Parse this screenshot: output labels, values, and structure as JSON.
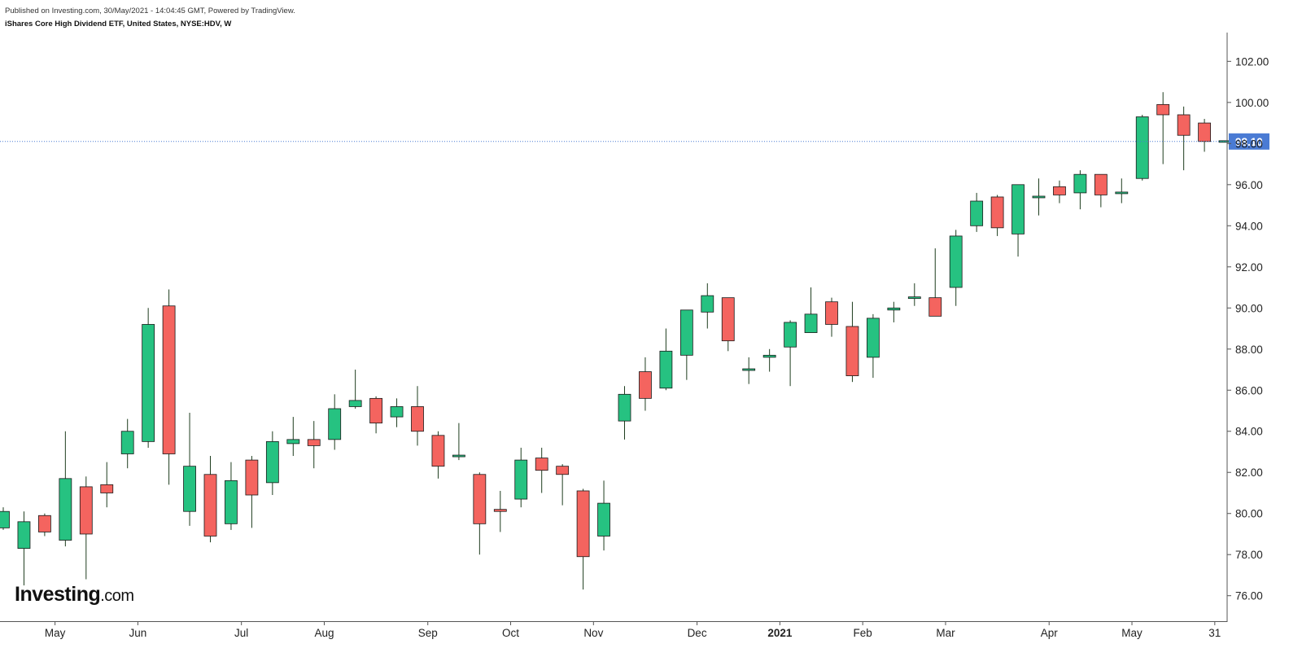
{
  "header": {
    "published": "Published on Investing.com, 30/May/2021 - 14:04:45 GMT, Powered by TradingView.",
    "instrument": "iShares Core High Dividend ETF, United States, NYSE:HDV, W"
  },
  "logo": {
    "main": "Investing",
    "suffix": ".com"
  },
  "colors": {
    "up": "#26c281",
    "down": "#f4645f",
    "wick": "#1e3d1e",
    "price_line": "#4a7bd4",
    "price_label_bg": "#4a7bd4"
  },
  "chart_data": {
    "type": "candlestick",
    "y_axis": {
      "range": [
        74.8,
        103.4
      ],
      "ticks": [
        "76.00",
        "78.00",
        "80.00",
        "82.00",
        "84.00",
        "86.00",
        "88.00",
        "90.00",
        "92.00",
        "94.00",
        "96.00",
        "98.00",
        "100.00",
        "102.00"
      ],
      "position": "right"
    },
    "x_axis": {
      "ticks": [
        {
          "label": "May",
          "index": 2.5
        },
        {
          "label": "Jun",
          "index": 6.5
        },
        {
          "label": "Jul",
          "index": 11.5
        },
        {
          "label": "Aug",
          "index": 15.5
        },
        {
          "label": "Sep",
          "index": 20.5
        },
        {
          "label": "Oct",
          "index": 24.5
        },
        {
          "label": "Nov",
          "index": 28.5
        },
        {
          "label": "Dec",
          "index": 33.5
        },
        {
          "label": "2021",
          "index": 37.5,
          "bold": true
        },
        {
          "label": "Feb",
          "index": 41.5
        },
        {
          "label": "Mar",
          "index": 45.5
        },
        {
          "label": "Apr",
          "index": 50.5
        },
        {
          "label": "May",
          "index": 54.5
        },
        {
          "label": "31",
          "index": 58.5
        }
      ]
    },
    "last_price": {
      "value": 98.1,
      "label": "98.10"
    },
    "candles": [
      {
        "o": 79.3,
        "h": 80.3,
        "l": 79.2,
        "c": 80.1
      },
      {
        "o": 78.3,
        "h": 80.1,
        "l": 76.5,
        "c": 79.6
      },
      {
        "o": 79.9,
        "h": 80.0,
        "l": 78.9,
        "c": 79.1
      },
      {
        "o": 78.7,
        "h": 84.0,
        "l": 78.4,
        "c": 81.7
      },
      {
        "o": 81.3,
        "h": 81.8,
        "l": 76.8,
        "c": 79.0
      },
      {
        "o": 81.4,
        "h": 82.5,
        "l": 80.3,
        "c": 81.0
      },
      {
        "o": 82.9,
        "h": 84.6,
        "l": 82.2,
        "c": 84.0
      },
      {
        "o": 83.5,
        "h": 90.0,
        "l": 83.2,
        "c": 89.2
      },
      {
        "o": 90.1,
        "h": 90.9,
        "l": 81.4,
        "c": 82.9
      },
      {
        "o": 80.1,
        "h": 84.9,
        "l": 79.4,
        "c": 82.3
      },
      {
        "o": 81.9,
        "h": 82.8,
        "l": 78.6,
        "c": 78.9
      },
      {
        "o": 79.5,
        "h": 82.5,
        "l": 79.2,
        "c": 81.6
      },
      {
        "o": 82.6,
        "h": 82.8,
        "l": 79.3,
        "c": 80.9
      },
      {
        "o": 81.5,
        "h": 84.0,
        "l": 80.9,
        "c": 83.5
      },
      {
        "o": 83.4,
        "h": 84.7,
        "l": 82.8,
        "c": 83.6
      },
      {
        "o": 83.6,
        "h": 84.5,
        "l": 82.2,
        "c": 83.3
      },
      {
        "o": 83.6,
        "h": 85.8,
        "l": 83.1,
        "c": 85.1
      },
      {
        "o": 85.2,
        "h": 87.0,
        "l": 85.1,
        "c": 85.5
      },
      {
        "o": 85.6,
        "h": 85.7,
        "l": 83.9,
        "c": 84.4
      },
      {
        "o": 84.7,
        "h": 85.6,
        "l": 84.2,
        "c": 85.2
      },
      {
        "o": 85.2,
        "h": 86.2,
        "l": 83.3,
        "c": 84.0
      },
      {
        "o": 83.8,
        "h": 84.0,
        "l": 81.7,
        "c": 82.3
      },
      {
        "o": 82.8,
        "h": 84.4,
        "l": 82.6,
        "c": 82.8
      },
      {
        "o": 81.9,
        "h": 82.0,
        "l": 78.0,
        "c": 79.5
      },
      {
        "o": 80.2,
        "h": 81.1,
        "l": 79.1,
        "c": 80.1
      },
      {
        "o": 80.7,
        "h": 83.2,
        "l": 80.3,
        "c": 82.6
      },
      {
        "o": 82.7,
        "h": 83.2,
        "l": 81.0,
        "c": 82.1
      },
      {
        "o": 82.3,
        "h": 82.4,
        "l": 80.4,
        "c": 81.9
      },
      {
        "o": 81.1,
        "h": 81.2,
        "l": 76.3,
        "c": 77.9
      },
      {
        "o": 78.9,
        "h": 81.6,
        "l": 78.2,
        "c": 80.5
      },
      {
        "o": 84.5,
        "h": 86.2,
        "l": 83.6,
        "c": 85.8
      },
      {
        "o": 86.9,
        "h": 87.6,
        "l": 85.0,
        "c": 85.6
      },
      {
        "o": 86.1,
        "h": 89.0,
        "l": 86.0,
        "c": 87.9
      },
      {
        "o": 87.7,
        "h": 89.9,
        "l": 86.5,
        "c": 89.9
      },
      {
        "o": 89.8,
        "h": 91.2,
        "l": 89.0,
        "c": 90.6
      },
      {
        "o": 90.5,
        "h": 90.5,
        "l": 87.9,
        "c": 88.4
      },
      {
        "o": 87.0,
        "h": 87.6,
        "l": 86.3,
        "c": 87.0
      },
      {
        "o": 87.6,
        "h": 88.0,
        "l": 86.9,
        "c": 87.7
      },
      {
        "o": 88.1,
        "h": 89.4,
        "l": 86.2,
        "c": 89.3
      },
      {
        "o": 88.8,
        "h": 91.0,
        "l": 88.8,
        "c": 89.7
      },
      {
        "o": 90.3,
        "h": 90.5,
        "l": 88.6,
        "c": 89.2
      },
      {
        "o": 89.1,
        "h": 90.3,
        "l": 86.4,
        "c": 86.7
      },
      {
        "o": 87.6,
        "h": 89.7,
        "l": 86.6,
        "c": 89.5
      },
      {
        "o": 89.9,
        "h": 90.3,
        "l": 89.3,
        "c": 90.0
      },
      {
        "o": 90.5,
        "h": 91.2,
        "l": 90.1,
        "c": 90.5
      },
      {
        "o": 90.5,
        "h": 92.9,
        "l": 89.6,
        "c": 89.6
      },
      {
        "o": 91.0,
        "h": 93.8,
        "l": 90.1,
        "c": 93.5
      },
      {
        "o": 94.0,
        "h": 95.6,
        "l": 93.7,
        "c": 95.2
      },
      {
        "o": 95.4,
        "h": 95.5,
        "l": 93.5,
        "c": 93.9
      },
      {
        "o": 93.6,
        "h": 96.0,
        "l": 92.5,
        "c": 96.0
      },
      {
        "o": 95.4,
        "h": 96.3,
        "l": 94.5,
        "c": 95.4
      },
      {
        "o": 95.9,
        "h": 96.2,
        "l": 95.1,
        "c": 95.5
      },
      {
        "o": 95.6,
        "h": 96.7,
        "l": 94.8,
        "c": 96.5
      },
      {
        "o": 96.5,
        "h": 96.5,
        "l": 94.9,
        "c": 95.5
      },
      {
        "o": 95.6,
        "h": 96.3,
        "l": 95.1,
        "c": 95.6
      },
      {
        "o": 96.3,
        "h": 99.4,
        "l": 96.2,
        "c": 99.3
      },
      {
        "o": 99.9,
        "h": 100.5,
        "l": 97.0,
        "c": 99.4
      },
      {
        "o": 99.4,
        "h": 99.8,
        "l": 96.7,
        "c": 98.4
      },
      {
        "o": 99.0,
        "h": 99.2,
        "l": 97.6,
        "c": 98.1
      },
      {
        "o": 98.1,
        "h": 98.1,
        "l": 98.1,
        "c": 98.1
      }
    ]
  }
}
